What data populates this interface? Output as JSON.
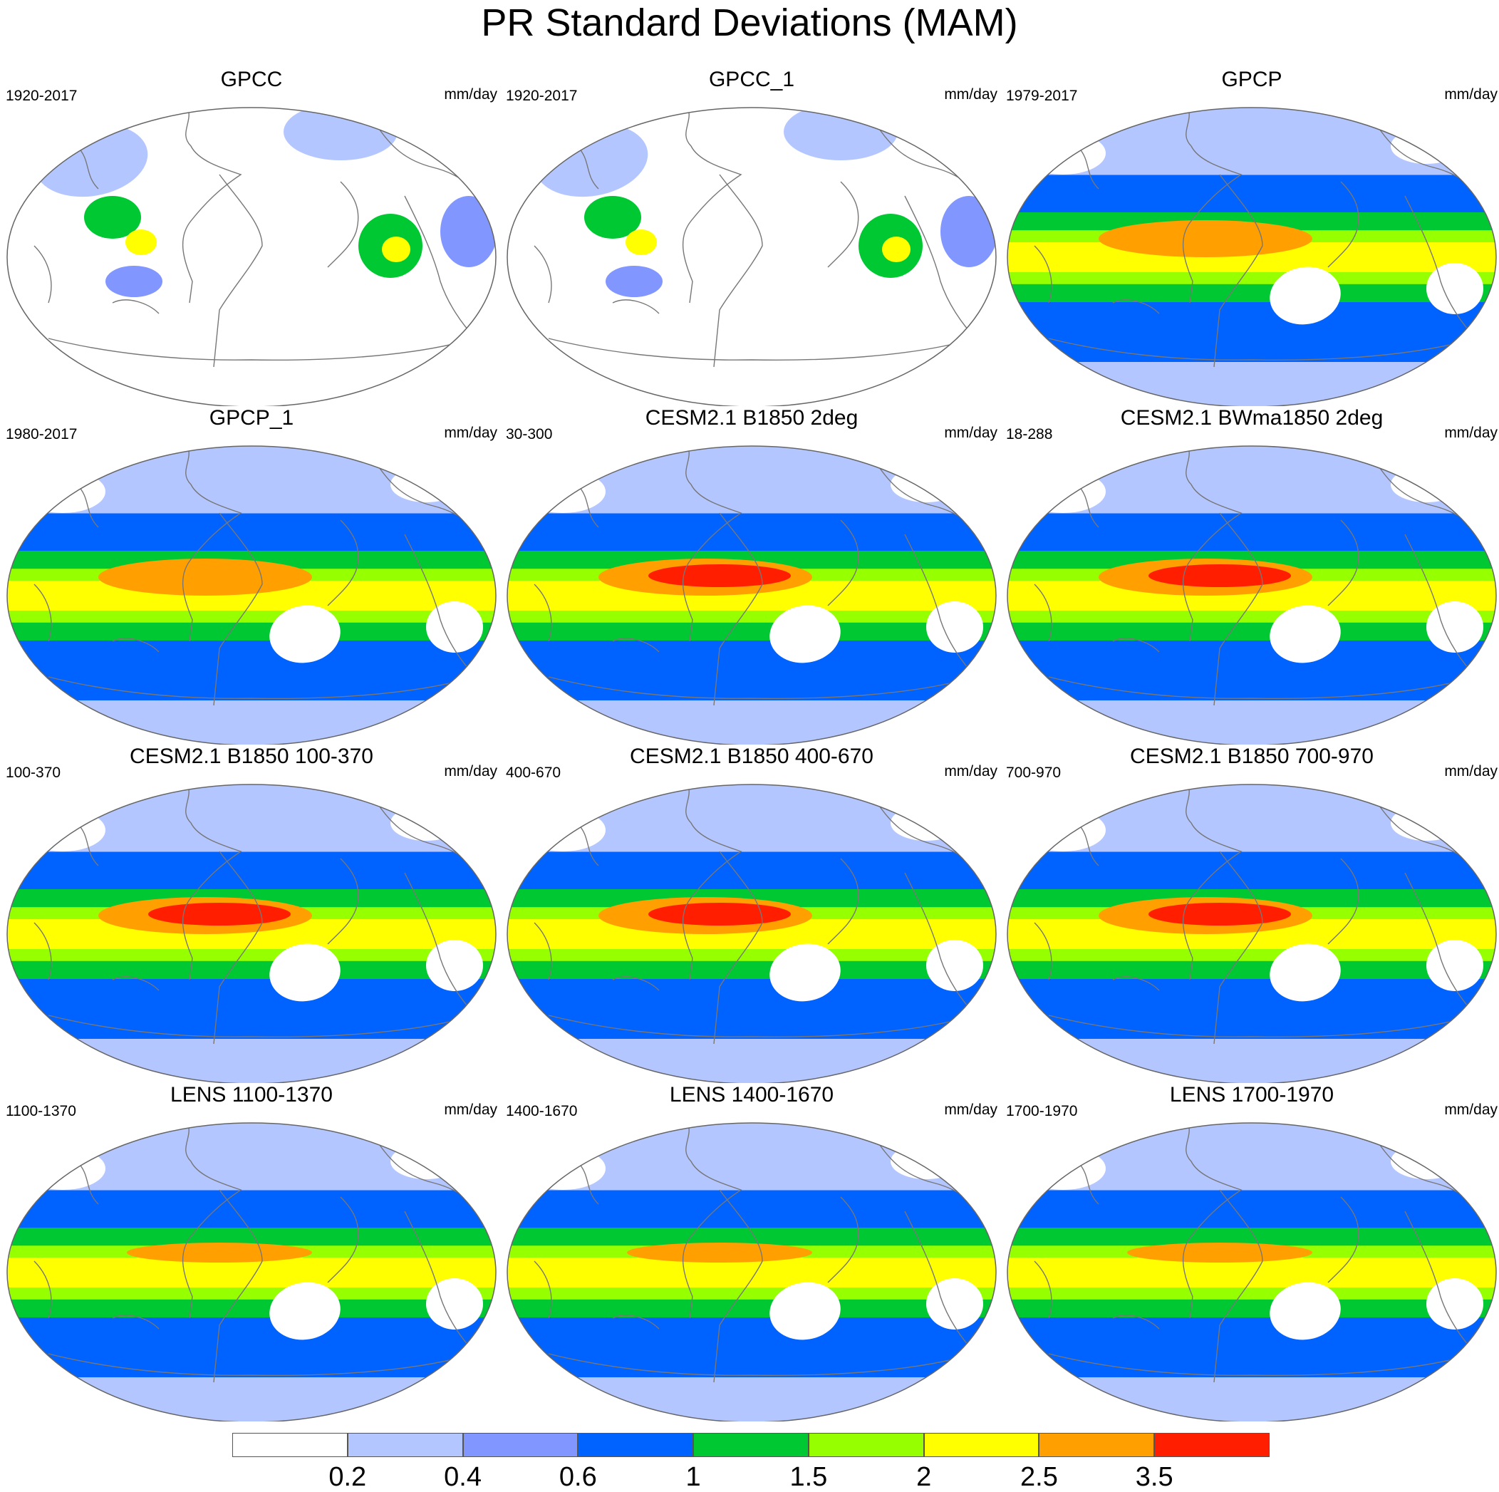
{
  "title": "PR Standard Deviations (MAM)",
  "units_label": "mm/day",
  "panels": [
    {
      "title": "GPCC",
      "period": "1920-2017",
      "style": "obs_land"
    },
    {
      "title": "GPCC_1",
      "period": "1920-2017",
      "style": "obs_land"
    },
    {
      "title": "GPCP",
      "period": "1979-2017",
      "style": "obs"
    },
    {
      "title": "GPCP_1",
      "period": "1980-2017",
      "style": "obs"
    },
    {
      "title": "CESM2.1 B1850 2deg",
      "period": "30-300",
      "style": "model_strong"
    },
    {
      "title": "CESM2.1 BWma1850 2deg",
      "period": "18-288",
      "style": "model_strong"
    },
    {
      "title": "CESM2.1 B1850 100-370",
      "period": "100-370",
      "style": "model_strong"
    },
    {
      "title": "CESM2.1 B1850 400-670",
      "period": "400-670",
      "style": "model_strong"
    },
    {
      "title": "CESM2.1 B1850 700-970",
      "period": "700-970",
      "style": "model_strong"
    },
    {
      "title": "LENS 1100-1370",
      "period": "1100-1370",
      "style": "lens"
    },
    {
      "title": "LENS 1400-1670",
      "period": "1400-1670",
      "style": "lens"
    },
    {
      "title": "LENS 1700-1970",
      "period": "1700-1970",
      "style": "lens"
    }
  ],
  "colorbar": {
    "colors": [
      "#ffffff",
      "#b4c6ff",
      "#8296ff",
      "#0062ff",
      "#00c832",
      "#96ff00",
      "#ffff00",
      "#ffa000",
      "#ff1e00"
    ],
    "labels": [
      "0.2",
      "0.4",
      "0.6",
      "1",
      "1.5",
      "2",
      "2.5",
      "3.5"
    ]
  }
}
